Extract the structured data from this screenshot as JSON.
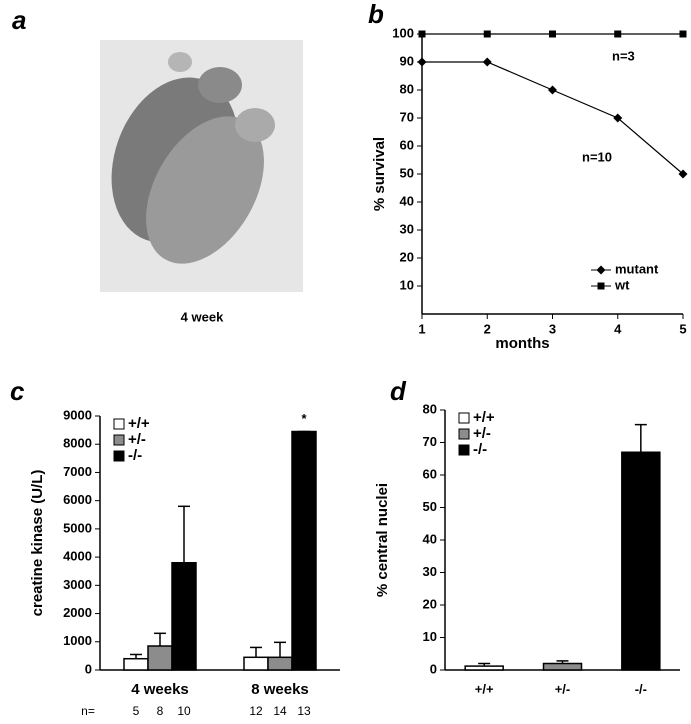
{
  "chart_data": [
    {
      "type": "image",
      "panel": "a",
      "caption": "4 week"
    },
    {
      "type": "line",
      "panel": "b",
      "x": [
        1,
        2,
        3,
        4,
        5
      ],
      "xlim": [
        1,
        5
      ],
      "xticks": [
        1,
        2,
        3,
        4,
        5
      ],
      "ylim": [
        0,
        100
      ],
      "yticks": [
        10,
        20,
        30,
        40,
        50,
        60,
        70,
        80,
        90,
        100
      ],
      "xlabel": "months",
      "ylabel": "% survival",
      "legend": "lower right",
      "series": [
        {
          "name": "mutant",
          "color": "#000000",
          "marker": "diamond",
          "values": [
            90,
            90,
            80,
            70,
            50
          ]
        },
        {
          "name": "wt",
          "color": "#000000",
          "marker": "square",
          "values": [
            100,
            100,
            100,
            100,
            100
          ]
        }
      ],
      "annotations": [
        "n=3",
        "n=10"
      ]
    },
    {
      "type": "bar",
      "panel": "c",
      "categories": [
        "4 weeks",
        "8 weeks"
      ],
      "ylim": [
        0,
        9000
      ],
      "yticks": [
        0,
        1000,
        2000,
        3000,
        4000,
        5000,
        6000,
        7000,
        8000,
        9000
      ],
      "ylabel": "creatine kinase (U/L)",
      "legend": "upper left",
      "n_label": "n=",
      "annotation": "*",
      "series": [
        {
          "name": "+/+",
          "color": "#ffffff",
          "values": [
            400,
            450
          ],
          "errors": [
            150,
            350
          ],
          "n": [
            5,
            12
          ]
        },
        {
          "name": "+/-",
          "color": "#8c8c8c",
          "values": [
            850,
            450
          ],
          "errors": [
            450,
            530
          ],
          "n": [
            8,
            14
          ]
        },
        {
          "name": "-/-",
          "color": "#000000",
          "values": [
            3800,
            8450
          ],
          "errors": [
            2000,
            0
          ],
          "n": [
            10,
            13
          ]
        }
      ]
    },
    {
      "type": "bar",
      "panel": "d",
      "categories": [
        "+/+",
        "+/-",
        "-/-"
      ],
      "ylim": [
        0,
        80
      ],
      "yticks": [
        0,
        10,
        20,
        30,
        40,
        50,
        60,
        70,
        80
      ],
      "ylabel": "% central nuclei",
      "legend": "upper left",
      "values": [
        1.2,
        2,
        67
      ],
      "errors": [
        0.8,
        0.8,
        8.5
      ],
      "colors": [
        "#ffffff",
        "#8c8c8c",
        "#000000"
      ]
    }
  ]
}
